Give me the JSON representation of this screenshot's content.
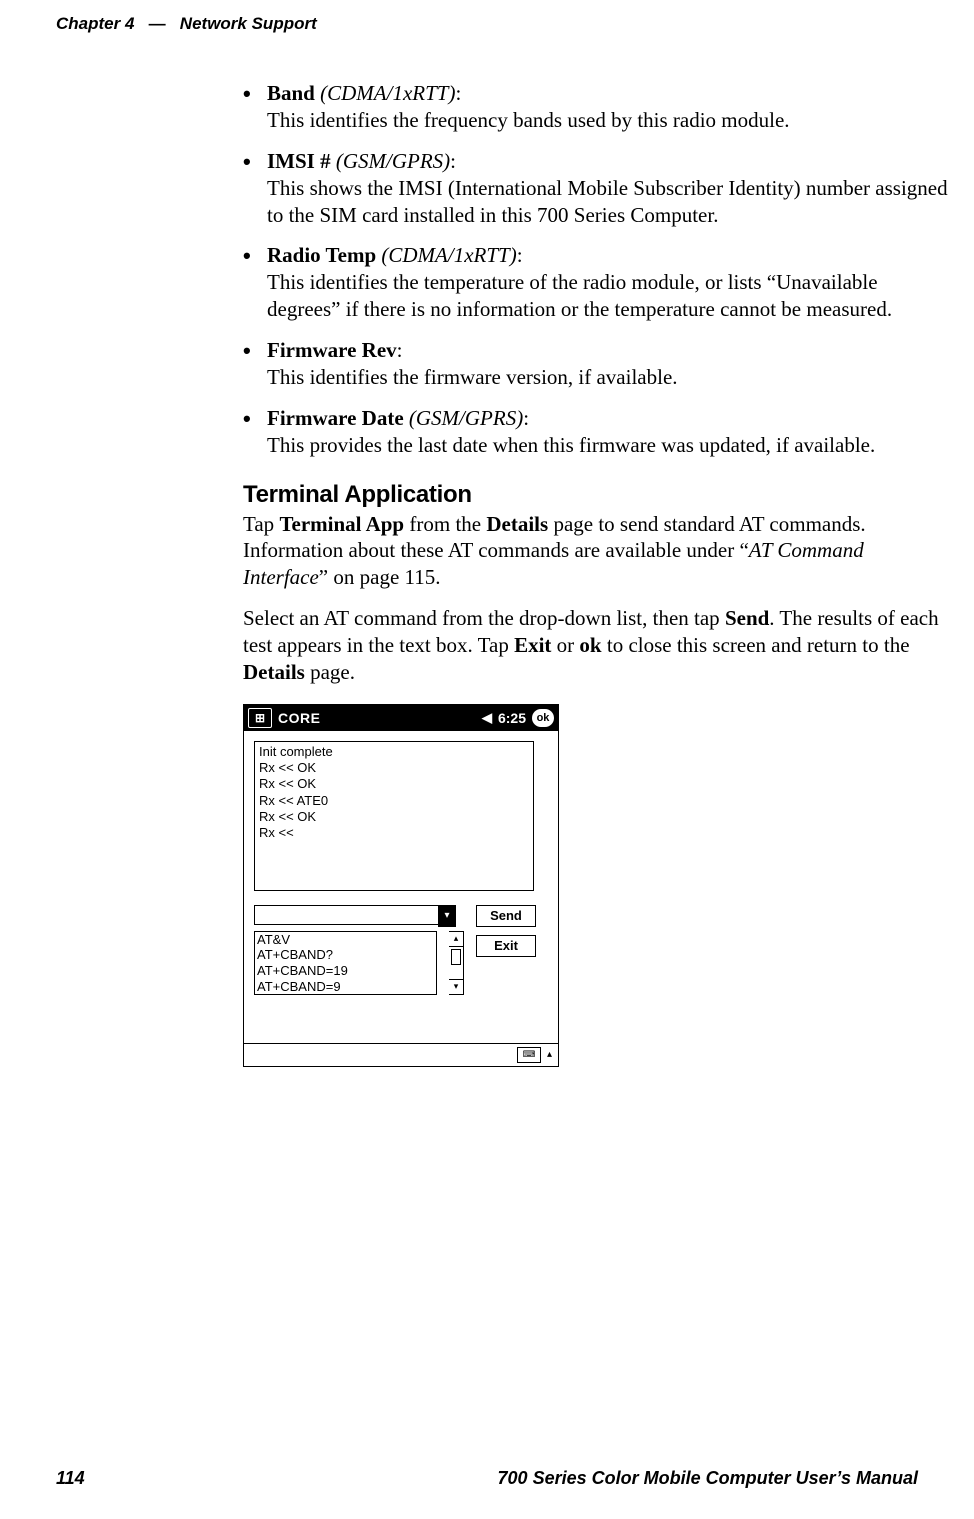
{
  "header": {
    "chapter": "Chapter 4",
    "dash": "—",
    "section": "Network Support"
  },
  "bullets": [
    {
      "term": "Band",
      "qual": "(CDMA/1xRTT)",
      "desc": "This identifies the frequency bands used by this radio module."
    },
    {
      "term": "IMSI #",
      "qual": "(GSM/GPRS)",
      "desc": "This shows the IMSI (International Mobile Subscriber Identity) number assigned to the SIM card installed in this 700 Series Computer."
    },
    {
      "term": "Radio Temp",
      "qual": "(CDMA/1xRTT)",
      "desc": "This identifies the temperature of the radio module, or lists “Unavailable degrees” if there is no information or the temperature cannot be measured."
    },
    {
      "term": "Firmware Rev",
      "qual": "",
      "desc": "This identifies the firmware version, if available."
    },
    {
      "term": "Firmware Date",
      "qual": "(GSM/GPRS)",
      "desc": "This provides the last date when this firmware was updated, if available."
    }
  ],
  "section_title": "Terminal Application",
  "para1_pre": "Tap ",
  "para1_b1": "Terminal App",
  "para1_mid1": " from the ",
  "para1_b2": "Details",
  "para1_mid2": " page to send standard AT commands. Information about these AT commands are available under “",
  "para1_i": "AT Command Interface",
  "para1_post": "” on page 115.",
  "para2_pre": "Select an AT command from the drop-down list, then tap ",
  "para2_b1": "Send",
  "para2_mid1": ". The results of each test appears in the text box. Tap ",
  "para2_b2": "Exit",
  "para2_mid2": " or ",
  "para2_b3": "ok",
  "para2_mid3": " to close this screen and return to the ",
  "para2_b4": "Details",
  "para2_post": " page.",
  "shot": {
    "title": "CORE",
    "speaker": "◀",
    "clock": "6:25",
    "ok": "ok",
    "start": "⊞",
    "log": "Init complete\nRx << OK\nRx << OK\nRx << ATE0\nRx << OK\nRx <<",
    "send": "Send",
    "exit": "Exit",
    "list": [
      "AT&V",
      "AT+CBAND?",
      "AT+CBAND=19",
      "AT+CBAND=9"
    ],
    "combo_arrow": "▾",
    "scroll_up": "▴",
    "scroll_down": "▾",
    "kbd": "⌨",
    "kbd_up": "▴"
  },
  "footer": {
    "page": "114",
    "man": "700 Series Color Mobile Computer User’s Manual"
  }
}
